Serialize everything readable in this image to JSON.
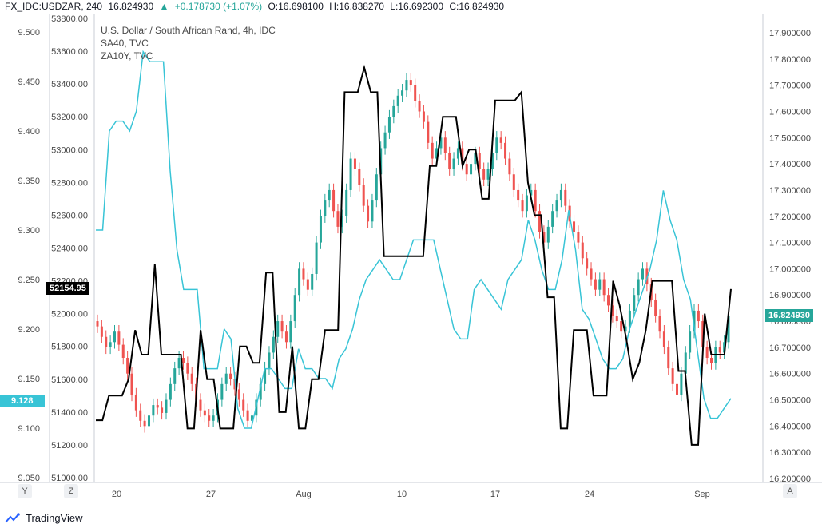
{
  "header": {
    "symbol": "FX_IDC:USDZAR, 240",
    "last": "16.824930",
    "change": "+0.178730 (+1.07%)",
    "open": "O:16.698100",
    "high": "H:16.838270",
    "low": "L:16.692300",
    "close": "C:16.824930"
  },
  "legend": {
    "main": "U.S. Dollar / South African Rand, 4h, IDC",
    "series2": "SA40, TVC",
    "series3": "ZA10Y, TVC"
  },
  "badges": {
    "sa40": "52154.95",
    "usdzar": "16.824930",
    "za10y": "9.128"
  },
  "axis_buttons": {
    "left_y": "Y",
    "left_z": "Z",
    "right_a": "A"
  },
  "footer": {
    "brand": "TradingView"
  },
  "colors": {
    "up": "#26a69a",
    "down": "#ef5350",
    "sa40": "#000000",
    "za10y": "#38c4d6",
    "badge_black": "#000000",
    "badge_teal": "#26a69a",
    "badge_cyan": "#38c4d6"
  },
  "chart_data": {
    "type": "line",
    "x_ticks": [
      "20",
      "27",
      "Aug",
      "10",
      "17",
      "24",
      "Sep"
    ],
    "left_axis": {
      "series": "ZA10Y, TVC",
      "ticks": [
        "9.500",
        "9.450",
        "9.400",
        "9.350",
        "9.300",
        "9.250",
        "9.200",
        "9.150",
        "9.100",
        "9.050"
      ],
      "range": [
        9.05,
        9.5
      ]
    },
    "inner_axis": {
      "series": "SA40, TVC",
      "ticks": [
        "53800.00",
        "53600.00",
        "53400.00",
        "53200.00",
        "53000.00",
        "52800.00",
        "52600.00",
        "52400.00",
        "52200.00",
        "52000.00",
        "51800.00",
        "51600.00",
        "51400.00",
        "51200.00",
        "51000.00"
      ],
      "range": [
        51000,
        53800
      ]
    },
    "right_axis": {
      "series": "U.S. Dollar / South African Rand, 4h, IDC",
      "ticks": [
        "17.900000",
        "17.800000",
        "17.700000",
        "17.600000",
        "17.500000",
        "17.400000",
        "17.300000",
        "17.200000",
        "17.100000",
        "17.000000",
        "16.900000",
        "16.800000",
        "16.700000",
        "16.600000",
        "16.500000",
        "16.400000",
        "16.300000",
        "16.200000"
      ],
      "range": [
        16.2,
        17.9
      ]
    },
    "usdzar_closes": [
      16.78,
      16.74,
      16.7,
      16.72,
      16.76,
      16.71,
      16.66,
      16.6,
      16.52,
      16.46,
      16.42,
      16.4,
      16.44,
      16.48,
      16.47,
      16.45,
      16.5,
      16.56,
      16.62,
      16.66,
      16.64,
      16.6,
      16.56,
      16.5,
      16.46,
      16.44,
      16.42,
      16.44,
      16.5,
      16.56,
      16.6,
      16.58,
      16.54,
      16.5,
      16.46,
      16.42,
      16.44,
      16.5,
      16.56,
      16.62,
      16.68,
      16.74,
      16.8,
      16.76,
      16.72,
      16.8,
      16.9,
      17.0,
      16.96,
      16.92,
      16.98,
      17.1,
      17.2,
      17.26,
      17.3,
      17.22,
      17.16,
      17.2,
      17.3,
      17.42,
      17.38,
      17.32,
      17.24,
      17.18,
      17.26,
      17.36,
      17.46,
      17.52,
      17.58,
      17.62,
      17.66,
      17.68,
      17.72,
      17.7,
      17.64,
      17.6,
      17.56,
      17.48,
      17.42,
      17.46,
      17.5,
      17.44,
      17.38,
      17.42,
      17.46,
      17.4,
      17.36,
      17.4,
      17.44,
      17.38,
      17.34,
      17.38,
      17.44,
      17.5,
      17.48,
      17.42,
      17.36,
      17.3,
      17.26,
      17.22,
      17.28,
      17.3,
      17.22,
      17.14,
      17.1,
      17.16,
      17.22,
      17.26,
      17.3,
      17.24,
      17.18,
      17.14,
      17.1,
      17.04,
      17.0,
      16.96,
      16.92,
      16.96,
      16.9,
      16.86,
      16.82,
      16.8,
      16.76,
      16.78,
      16.84,
      16.9,
      16.96,
      17.0,
      16.94,
      16.88,
      16.82,
      16.76,
      16.7,
      16.62,
      16.56,
      16.52,
      16.6,
      16.68,
      16.76,
      16.84,
      16.8,
      16.7,
      16.66,
      16.64,
      16.7,
      16.68,
      16.72,
      16.82
    ],
    "sa40_values": [
      51350,
      51350,
      51500,
      51500,
      51500,
      51600,
      51900,
      51750,
      51750,
      52300,
      51750,
      51750,
      51750,
      51750,
      51300,
      51300,
      51900,
      51600,
      51600,
      51300,
      51300,
      51300,
      51800,
      51800,
      51700,
      51700,
      52250,
      52250,
      51400,
      51400,
      51800,
      51300,
      51300,
      51600,
      51600,
      51900,
      51900,
      51900,
      53350,
      53350,
      53350,
      53500,
      53350,
      53350,
      52350,
      52350,
      52350,
      52350,
      52350,
      52350,
      52350,
      52900,
      52900,
      53200,
      53200,
      53200,
      52900,
      53000,
      53000,
      52700,
      52700,
      53300,
      53300,
      53300,
      53300,
      53350,
      52800,
      52600,
      52600,
      52100,
      52100,
      51300,
      51300,
      51900,
      51900,
      51900,
      51500,
      51500,
      51500,
      52200,
      52050,
      51850,
      51600,
      51700,
      51900,
      52200,
      52200,
      52200,
      52200,
      51650,
      51650,
      51200,
      51200,
      52000,
      51750,
      51750,
      51750,
      52150
    ],
    "za10y_values": [
      9.3,
      9.3,
      9.4,
      9.41,
      9.41,
      9.4,
      9.42,
      9.48,
      9.47,
      9.47,
      9.47,
      9.36,
      9.28,
      9.24,
      9.24,
      9.24,
      9.16,
      9.16,
      9.16,
      9.2,
      9.19,
      9.12,
      9.1,
      9.1,
      9.13,
      9.16,
      9.16,
      9.15,
      9.14,
      9.14,
      9.18,
      9.16,
      9.16,
      9.15,
      9.15,
      9.14,
      9.17,
      9.18,
      9.2,
      9.23,
      9.25,
      9.26,
      9.27,
      9.26,
      9.25,
      9.25,
      9.27,
      9.29,
      9.29,
      9.29,
      9.29,
      9.26,
      9.23,
      9.2,
      9.19,
      9.19,
      9.24,
      9.25,
      9.24,
      9.23,
      9.22,
      9.25,
      9.26,
      9.27,
      9.31,
      9.29,
      9.26,
      9.24,
      9.24,
      9.27,
      9.32,
      9.28,
      9.22,
      9.21,
      9.19,
      9.17,
      9.16,
      9.16,
      9.17,
      9.2,
      9.22,
      9.24,
      9.26,
      9.29,
      9.34,
      9.31,
      9.29,
      9.25,
      9.23,
      9.18,
      9.13,
      9.11,
      9.11,
      9.12,
      9.13
    ]
  }
}
